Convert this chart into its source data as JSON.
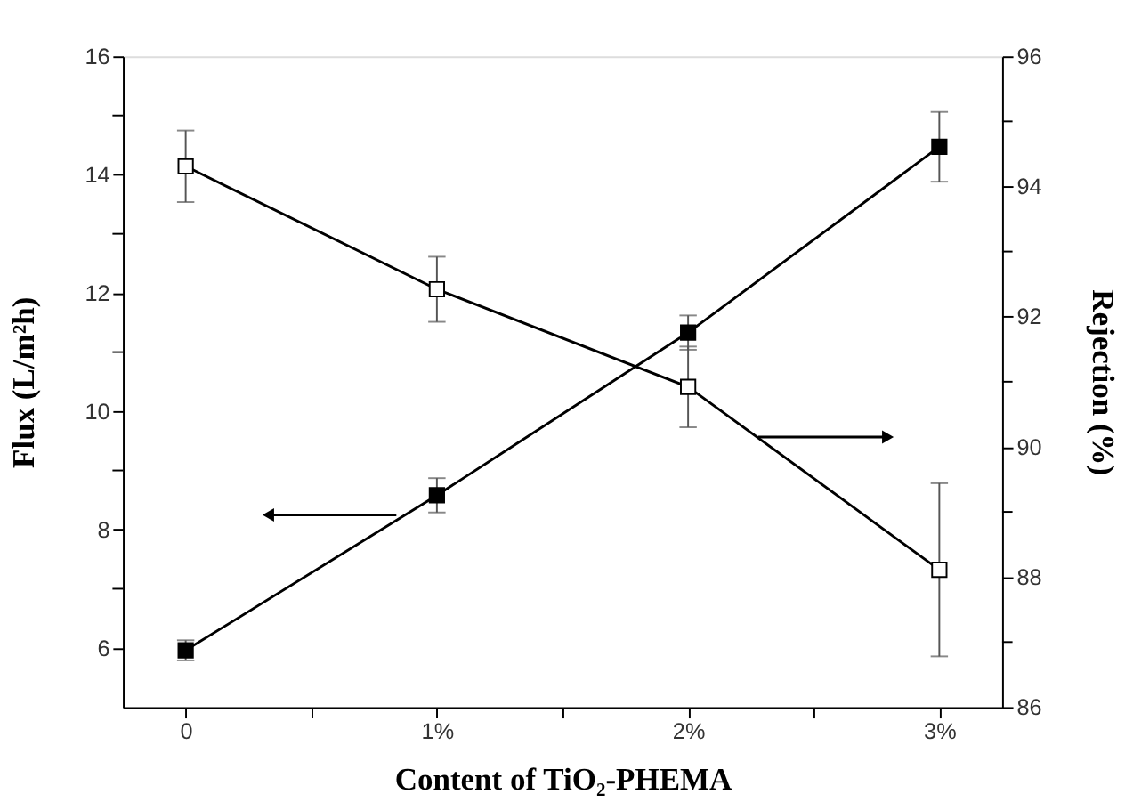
{
  "chart_data": {
    "type": "line",
    "xlabel": "Content of TiO₂-PHEMA",
    "ylabel": "Flux (L/m²h)",
    "y2label": "Rejection (%)",
    "x": [
      0,
      1,
      2,
      3
    ],
    "xlim": [
      -0.25,
      3.25
    ],
    "xticks": [
      0,
      {
        "value": 0.5,
        "label": null
      },
      {
        "value": 1,
        "label": "1%"
      },
      {
        "value": 1.5,
        "label": null
      },
      {
        "value": 2,
        "label": "2%"
      },
      {
        "value": 2.5,
        "label": null
      },
      {
        "value": 3,
        "label": "3%"
      }
    ],
    "ylim": [
      5,
      16
    ],
    "yticks": [
      6,
      {
        "value": 7,
        "label": null
      },
      8,
      {
        "value": 9,
        "label": null
      },
      10,
      {
        "value": 11,
        "label": null
      },
      12,
      {
        "value": 13,
        "label": null
      },
      14,
      {
        "value": 15,
        "label": null
      },
      16
    ],
    "y2lim": [
      86,
      96
    ],
    "y2ticks": [
      86,
      {
        "value": 87,
        "label": null
      },
      88,
      {
        "value": 89,
        "label": null
      },
      90,
      {
        "value": 91,
        "label": null
      },
      92,
      {
        "value": 93,
        "label": null
      },
      94,
      {
        "value": 95,
        "label": null
      },
      96
    ],
    "series": [
      {
        "color": "#000000",
        "values": [
          5.96,
          8.58,
          11.33,
          14.47
        ],
        "errors": [
          0.17,
          0.29,
          0.29,
          0.59
        ]
      },
      {
        "color": "#000000",
        "axis": "y2",
        "values": [
          94.31,
          92.42,
          90.92,
          88.11
        ],
        "errors": [
          0.55,
          0.5,
          0.62,
          1.33
        ]
      }
    ],
    "marker": "square",
    "line_style": "solid",
    "grid": false
  }
}
